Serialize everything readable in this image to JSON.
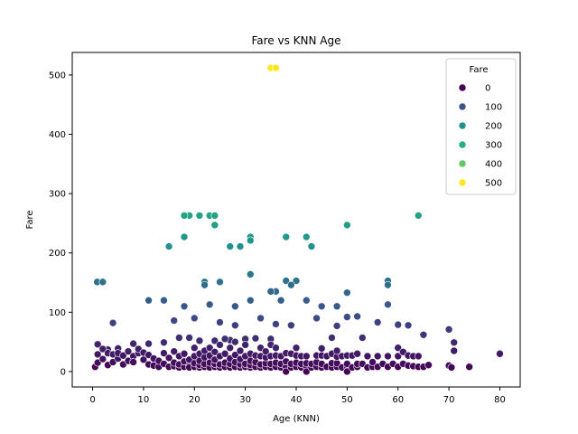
{
  "chart_data": {
    "type": "scatter",
    "title": "Fare vs KNN Age",
    "xlabel": "Age (KNN)",
    "ylabel": "Fare",
    "xlim": [
      -4,
      84
    ],
    "ylim": [
      -26,
      538
    ],
    "xticks": [
      0,
      10,
      20,
      30,
      40,
      50,
      60,
      70,
      80
    ],
    "yticks": [
      0,
      100,
      200,
      300,
      400,
      500
    ],
    "grid": false,
    "legend": {
      "title": "Fare",
      "position": "top-right",
      "entries": [
        {
          "label": "0",
          "color": "#440154"
        },
        {
          "label": "100",
          "color": "#3b528b"
        },
        {
          "label": "200",
          "color": "#21908d"
        },
        {
          "label": "300",
          "color": "#27ad81"
        },
        {
          "label": "400",
          "color": "#5ec962"
        },
        {
          "label": "500",
          "color": "#fde725"
        }
      ]
    },
    "hue_stops": [
      {
        "value": 0,
        "color": "#440154"
      },
      {
        "value": 100,
        "color": "#3b528b"
      },
      {
        "value": 200,
        "color": "#21908d"
      },
      {
        "value": 300,
        "color": "#27ad81"
      },
      {
        "value": 400,
        "color": "#5ec962"
      },
      {
        "value": 512,
        "color": "#fde725"
      }
    ],
    "points": [
      [
        35,
        512
      ],
      [
        36,
        512
      ],
      [
        64,
        263
      ],
      [
        19,
        263
      ],
      [
        21,
        263
      ],
      [
        23,
        263
      ],
      [
        24,
        263
      ],
      [
        18,
        263
      ],
      [
        50,
        247
      ],
      [
        24,
        247
      ],
      [
        38,
        227
      ],
      [
        42,
        227
      ],
      [
        18,
        227
      ],
      [
        31,
        227
      ],
      [
        43,
        211
      ],
      [
        27,
        211
      ],
      [
        29,
        211
      ],
      [
        15,
        211
      ],
      [
        31,
        221
      ],
      [
        0.9,
        151
      ],
      [
        2,
        151
      ],
      [
        22,
        151
      ],
      [
        25,
        151
      ],
      [
        38,
        153
      ],
      [
        40,
        153
      ],
      [
        58,
        153
      ],
      [
        31,
        164
      ],
      [
        58,
        146
      ],
      [
        22,
        146
      ],
      [
        39,
        146
      ],
      [
        36,
        135
      ],
      [
        35,
        135
      ],
      [
        50,
        133
      ],
      [
        37,
        120
      ],
      [
        11,
        120
      ],
      [
        14,
        120
      ],
      [
        31,
        120
      ],
      [
        42,
        120
      ],
      [
        23,
        113
      ],
      [
        18,
        110
      ],
      [
        28,
        110
      ],
      [
        45,
        110
      ],
      [
        48,
        110
      ],
      [
        58,
        113
      ],
      [
        4,
        82
      ],
      [
        16,
        86
      ],
      [
        20,
        90
      ],
      [
        25,
        83
      ],
      [
        28,
        78
      ],
      [
        33,
        90
      ],
      [
        36,
        80
      ],
      [
        39,
        78
      ],
      [
        44,
        90
      ],
      [
        50,
        92
      ],
      [
        52,
        93
      ],
      [
        56,
        83
      ],
      [
        60,
        79
      ],
      [
        62,
        78
      ],
      [
        70,
        71
      ],
      [
        65,
        62
      ],
      [
        53,
        57
      ],
      [
        48,
        77
      ],
      [
        47,
        57
      ],
      [
        35,
        55
      ],
      [
        30,
        55
      ],
      [
        27,
        53
      ],
      [
        24,
        52
      ],
      [
        21,
        52
      ],
      [
        19,
        57
      ],
      [
        17,
        57
      ],
      [
        14,
        49
      ],
      [
        11,
        47
      ],
      [
        8,
        47
      ],
      [
        5,
        39
      ],
      [
        3,
        37
      ],
      [
        1,
        46
      ],
      [
        0.5,
        8
      ],
      [
        1,
        15
      ],
      [
        1,
        29
      ],
      [
        2,
        21
      ],
      [
        2,
        38
      ],
      [
        3,
        31
      ],
      [
        3,
        11
      ],
      [
        4,
        16
      ],
      [
        4,
        29
      ],
      [
        5,
        22
      ],
      [
        5,
        31
      ],
      [
        6,
        12
      ],
      [
        6,
        27
      ],
      [
        7,
        34
      ],
      [
        7,
        18
      ],
      [
        8,
        26
      ],
      [
        8,
        16
      ],
      [
        9,
        31
      ],
      [
        9,
        38
      ],
      [
        10,
        20
      ],
      [
        10,
        32
      ],
      [
        11,
        12
      ],
      [
        11,
        28
      ],
      [
        12,
        10
      ],
      [
        12,
        22
      ],
      [
        13,
        8
      ],
      [
        13,
        18
      ],
      [
        14,
        31
      ],
      [
        14,
        13
      ],
      [
        15,
        8
      ],
      [
        15,
        23
      ],
      [
        16,
        9
      ],
      [
        16,
        34
      ],
      [
        16,
        15
      ],
      [
        17,
        7
      ],
      [
        17,
        26
      ],
      [
        17,
        12
      ],
      [
        18,
        8
      ],
      [
        18,
        17
      ],
      [
        18,
        30
      ],
      [
        19,
        10
      ],
      [
        19,
        20
      ],
      [
        19,
        7
      ],
      [
        20,
        8
      ],
      [
        20,
        14
      ],
      [
        20,
        26
      ],
      [
        20,
        40
      ],
      [
        21,
        7
      ],
      [
        21,
        11
      ],
      [
        21,
        18
      ],
      [
        21,
        30
      ],
      [
        22,
        8
      ],
      [
        22,
        13
      ],
      [
        22,
        24
      ],
      [
        22,
        35
      ],
      [
        23,
        7
      ],
      [
        23,
        15
      ],
      [
        23,
        27
      ],
      [
        23,
        40
      ],
      [
        24,
        8
      ],
      [
        24,
        13
      ],
      [
        24,
        20
      ],
      [
        24,
        33
      ],
      [
        25,
        7
      ],
      [
        25,
        12
      ],
      [
        25,
        26
      ],
      [
        25,
        45
      ],
      [
        26,
        8
      ],
      [
        26,
        15
      ],
      [
        26,
        30
      ],
      [
        26,
        55
      ],
      [
        27,
        7
      ],
      [
        27,
        13
      ],
      [
        27,
        22
      ],
      [
        27,
        40
      ],
      [
        28,
        8
      ],
      [
        28,
        16
      ],
      [
        28,
        28
      ],
      [
        28,
        50
      ],
      [
        29,
        7
      ],
      [
        29,
        12
      ],
      [
        29,
        21
      ],
      [
        29,
        35
      ],
      [
        30,
        8
      ],
      [
        30,
        13
      ],
      [
        30,
        26
      ],
      [
        30,
        45
      ],
      [
        31,
        7
      ],
      [
        31,
        11
      ],
      [
        31,
        18
      ],
      [
        31,
        30
      ],
      [
        32,
        8
      ],
      [
        32,
        16
      ],
      [
        32,
        27
      ],
      [
        32,
        56
      ],
      [
        33,
        7
      ],
      [
        33,
        12
      ],
      [
        33,
        26
      ],
      [
        33,
        40
      ],
      [
        34,
        8
      ],
      [
        34,
        14
      ],
      [
        34,
        24
      ],
      [
        34,
        34
      ],
      [
        35,
        7
      ],
      [
        35,
        13
      ],
      [
        35,
        26
      ],
      [
        35,
        45
      ],
      [
        36,
        8
      ],
      [
        36,
        15
      ],
      [
        36,
        27
      ],
      [
        36,
        40
      ],
      [
        37,
        7
      ],
      [
        37,
        13
      ],
      [
        37,
        26
      ],
      [
        38,
        8
      ],
      [
        38,
        17
      ],
      [
        38,
        31
      ],
      [
        38,
        0
      ],
      [
        39,
        7
      ],
      [
        39,
        13
      ],
      [
        39,
        30
      ],
      [
        40,
        8
      ],
      [
        40,
        15
      ],
      [
        40,
        27
      ],
      [
        40,
        40
      ],
      [
        41,
        7
      ],
      [
        41,
        13
      ],
      [
        41,
        26
      ],
      [
        42,
        8
      ],
      [
        42,
        14
      ],
      [
        42,
        26
      ],
      [
        42,
        0
      ],
      [
        43,
        7
      ],
      [
        43,
        13
      ],
      [
        44,
        8
      ],
      [
        44,
        16
      ],
      [
        44,
        27
      ],
      [
        45,
        7
      ],
      [
        45,
        13
      ],
      [
        45,
        27
      ],
      [
        45,
        39
      ],
      [
        46,
        8
      ],
      [
        46,
        26
      ],
      [
        47,
        7
      ],
      [
        47,
        14
      ],
      [
        47,
        30
      ],
      [
        48,
        8
      ],
      [
        48,
        14
      ],
      [
        48,
        25
      ],
      [
        48,
        35
      ],
      [
        49,
        7
      ],
      [
        49,
        26
      ],
      [
        50,
        8
      ],
      [
        50,
        13
      ],
      [
        50,
        27
      ],
      [
        50,
        0
      ],
      [
        51,
        7
      ],
      [
        51,
        27
      ],
      [
        52,
        8
      ],
      [
        52,
        13
      ],
      [
        52,
        30
      ],
      [
        53,
        13
      ],
      [
        54,
        7
      ],
      [
        54,
        26
      ],
      [
        55,
        8
      ],
      [
        55,
        16
      ],
      [
        56,
        8
      ],
      [
        56,
        26
      ],
      [
        57,
        13
      ],
      [
        58,
        8
      ],
      [
        58,
        26
      ],
      [
        59,
        13
      ],
      [
        60,
        8
      ],
      [
        60,
        26
      ],
      [
        60,
        40
      ],
      [
        61,
        13
      ],
      [
        61,
        33
      ],
      [
        62,
        10
      ],
      [
        62,
        27
      ],
      [
        63,
        9
      ],
      [
        63,
        26
      ],
      [
        64,
        8
      ],
      [
        64,
        26
      ],
      [
        65,
        8
      ],
      [
        66,
        11
      ],
      [
        70,
        10
      ],
      [
        70.5,
        7
      ],
      [
        71,
        49
      ],
      [
        71,
        35
      ],
      [
        74,
        8
      ],
      [
        80,
        30
      ]
    ]
  }
}
